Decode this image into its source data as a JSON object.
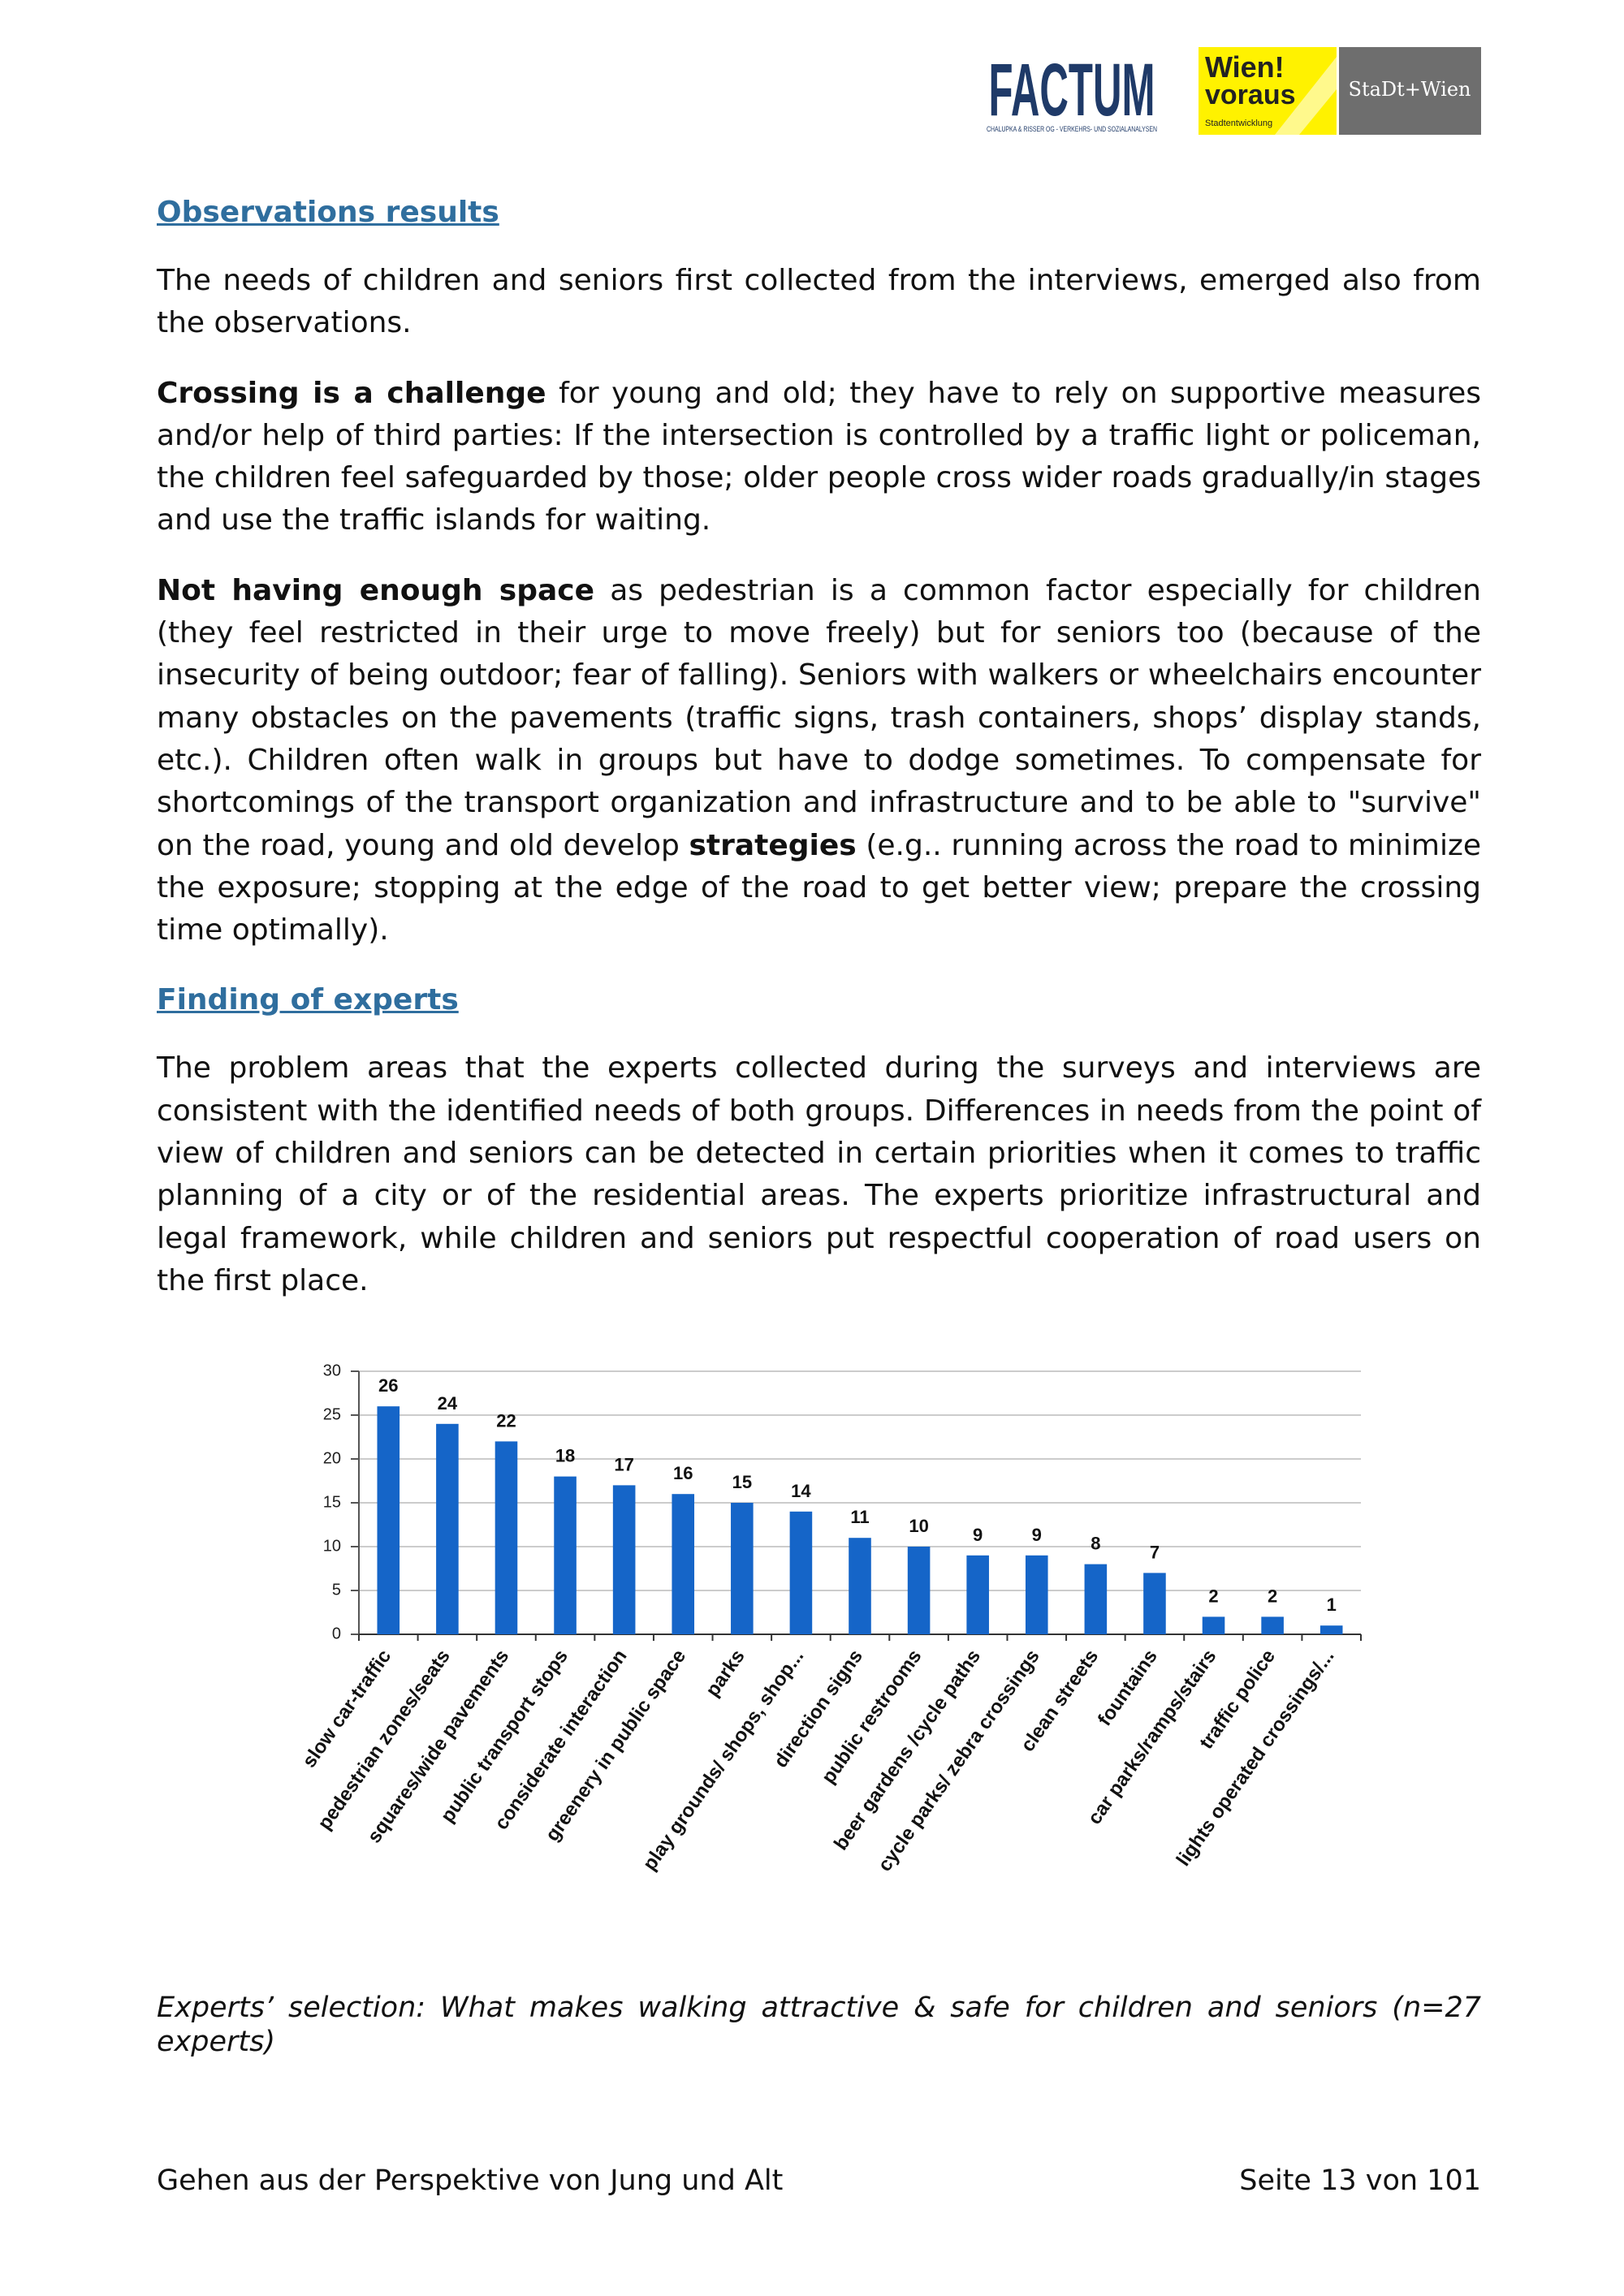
{
  "header": {
    "logos": {
      "factum": "FACTUM",
      "factum_sub": "CHALUPKA & RISSER OG - VERKEHRS- UND SOZIALANALYSEN",
      "wien_line1": "Wien!",
      "wien_line2": "voraus",
      "wien_sub": "Stadtentwicklung",
      "stadt": "StaDt+Wien"
    }
  },
  "sections": [
    {
      "heading": "Observations results",
      "paragraphs": [
        [
          {
            "text": "The needs of children and seniors first collected from the interviews, emerged also from the observations."
          }
        ],
        [
          {
            "text": "Crossing is a challenge",
            "bold": true
          },
          {
            "text": " for young and old; they have to rely on supportive measures and/or help of third parties: If the intersection is controlled by a traffic light or policeman, the children feel safeguarded by those; older people cross wider roads gradually/in stages and use the traffic islands for waiting."
          }
        ],
        [
          {
            "text": "Not having enough space",
            "bold": true
          },
          {
            "text": " as pedestrian is a common factor especially for children (they feel restricted in their urge to move freely) but for seniors too (because of the insecurity of being outdoor; fear of falling). Seniors with walkers or wheelchairs encounter many obstacles on the pavements (traffic signs, trash containers, shops’ display stands, etc.). Children often walk in groups but have to dodge sometimes. To compensate for shortcomings of the transport organization and infrastructure and to be able to \"survive\" on the road, young and old develop "
          },
          {
            "text": "strategies",
            "bold": true
          },
          {
            "text": " (e.g.. running across the road to minimize the exposure; stopping at the edge of the road to get better view; prepare the crossing time optimally)."
          }
        ]
      ]
    },
    {
      "heading": "Finding of experts",
      "paragraphs": [
        [
          {
            "text": "The problem areas that the experts collected during the surveys and interviews are consistent with the identified needs of both groups. Differences in needs from the point of view of children and seniors can be detected in certain priorities when it comes to traffic planning of a city or of the residential areas. The experts prioritize infrastructural and legal framework, while children and seniors put respectful cooperation of road users on the first place."
          }
        ]
      ]
    }
  ],
  "chart_data": {
    "type": "bar",
    "categories": [
      "slow car-traffic",
      "pedestrian zones/seats",
      "squares/wide pavements",
      "public transport stops",
      "considerate interaction",
      "greenery in public space",
      "parks",
      "play grounds/ shops, shop...",
      "direction signs",
      "public restrooms",
      "beer gardens /cycle paths",
      "cycle parks/ zebra crossings",
      "clean streets",
      "fountains",
      "car parks/ramps/stairs",
      "traffic police",
      "lights operated crossings/..."
    ],
    "values": [
      26,
      24,
      22,
      18,
      17,
      16,
      15,
      14,
      11,
      10,
      9,
      9,
      8,
      7,
      2,
      2,
      1
    ],
    "color": "#1565c8",
    "ylim": [
      0,
      30
    ],
    "yticks": [
      0,
      5,
      10,
      15,
      20,
      25,
      30
    ],
    "grid": true
  },
  "caption": "Experts’ selection: What makes walking attractive & safe for children and seniors (n=27 experts)",
  "footer": {
    "left": "Gehen aus der Perspektive von Jung und Alt",
    "right": "Seite 13 von 101"
  }
}
